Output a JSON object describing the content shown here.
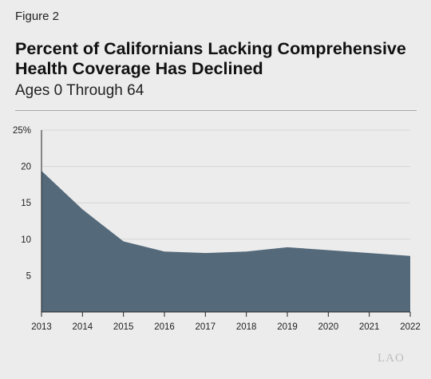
{
  "figure_label": "Figure 2",
  "title": "Percent of Californians Lacking Comprehensive Health Coverage Has Declined",
  "subtitle": "Ages 0 Through 64",
  "logo_text": "LAO",
  "chart_data": {
    "type": "area",
    "x": [
      2013,
      2014,
      2015,
      2016,
      2017,
      2018,
      2019,
      2020,
      2021,
      2022
    ],
    "values": [
      19.4,
      14.1,
      9.7,
      8.3,
      8.1,
      8.3,
      8.9,
      8.5,
      8.1,
      7.7
    ],
    "xlabel": "",
    "ylabel": "",
    "ylim": [
      0,
      25
    ],
    "yticks": [
      5,
      10,
      15,
      20,
      25
    ],
    "ytick_labels": [
      "5",
      "10",
      "15",
      "20",
      "25%"
    ],
    "xtick_labels": [
      "2013",
      "2014",
      "2015",
      "2016",
      "2017",
      "2018",
      "2019",
      "2020",
      "2021",
      "2022"
    ],
    "grid": true,
    "fill_color": "#54697a",
    "grid_color": "#d6d6d6",
    "axis_color": "#222222"
  }
}
